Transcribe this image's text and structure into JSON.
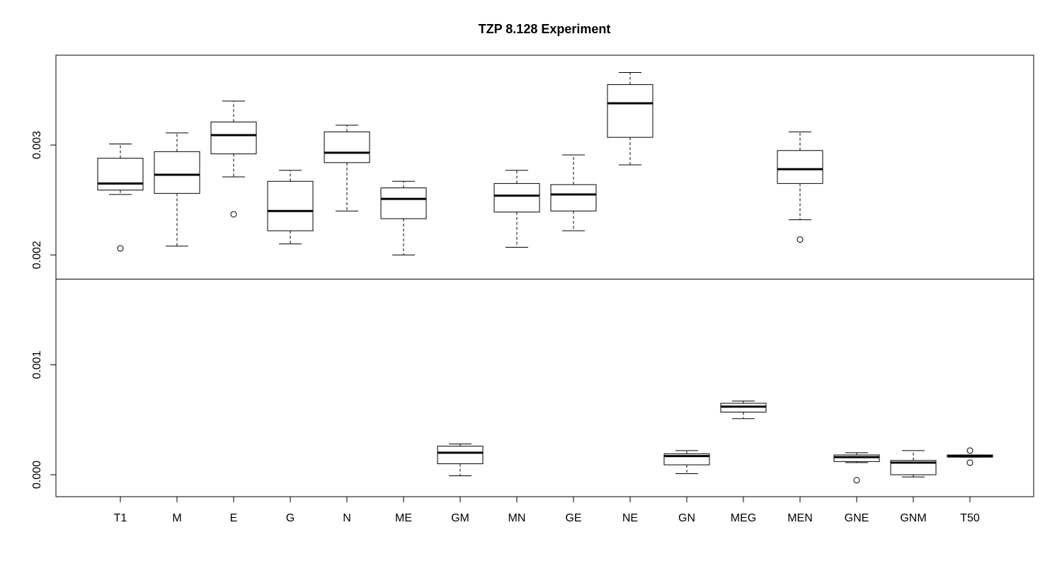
{
  "chart_data": {
    "type": "boxplot",
    "title": "TZP 8.128 Experiment",
    "xlabel": "",
    "ylabel": "",
    "ylim": [
      -0.0002,
      0.0038
    ],
    "yticks": [
      "0.000",
      "0.001",
      "0.002",
      "0.003"
    ],
    "ytick_values": [
      0,
      0.001,
      0.002,
      0.003
    ],
    "reference_line": 0.00178,
    "grid": false,
    "categories": [
      "T1",
      "M",
      "E",
      "G",
      "N",
      "ME",
      "GM",
      "MN",
      "GE",
      "NE",
      "GN",
      "MEG",
      "MEN",
      "GNE",
      "GNM",
      "T50"
    ],
    "boxes": [
      {
        "category": "T1",
        "min": 0.00255,
        "q1": 0.00259,
        "median": 0.00265,
        "q3": 0.00288,
        "max": 0.00301,
        "outliers": [
          0.00206
        ]
      },
      {
        "category": "M",
        "min": 0.00208,
        "q1": 0.00256,
        "median": 0.00273,
        "q3": 0.00294,
        "max": 0.00311,
        "outliers": []
      },
      {
        "category": "E",
        "min": 0.00271,
        "q1": 0.00292,
        "median": 0.00309,
        "q3": 0.00321,
        "max": 0.0034,
        "outliers": [
          0.00237
        ]
      },
      {
        "category": "G",
        "min": 0.0021,
        "q1": 0.00222,
        "median": 0.0024,
        "q3": 0.00267,
        "max": 0.00277,
        "outliers": []
      },
      {
        "category": "N",
        "min": 0.0024,
        "q1": 0.00284,
        "median": 0.00293,
        "q3": 0.00312,
        "max": 0.00318,
        "outliers": []
      },
      {
        "category": "ME",
        "min": 0.002,
        "q1": 0.00233,
        "median": 0.00251,
        "q3": 0.00261,
        "max": 0.00267,
        "outliers": []
      },
      {
        "category": "GM",
        "min": -1e-05,
        "q1": 0.0001,
        "median": 0.0002,
        "q3": 0.00026,
        "max": 0.00028,
        "outliers": []
      },
      {
        "category": "MN",
        "min": 0.00207,
        "q1": 0.00239,
        "median": 0.00254,
        "q3": 0.00265,
        "max": 0.00277,
        "outliers": []
      },
      {
        "category": "GE",
        "min": 0.00222,
        "q1": 0.0024,
        "median": 0.00255,
        "q3": 0.00264,
        "max": 0.00291,
        "outliers": []
      },
      {
        "category": "NE",
        "min": 0.00282,
        "q1": 0.00307,
        "median": 0.00338,
        "q3": 0.00355,
        "max": 0.00366,
        "outliers": []
      },
      {
        "category": "GN",
        "min": 1e-05,
        "q1": 9e-05,
        "median": 0.00017,
        "q3": 0.00019,
        "max": 0.00022,
        "outliers": []
      },
      {
        "category": "MEG",
        "min": 0.00051,
        "q1": 0.00057,
        "median": 0.00062,
        "q3": 0.00065,
        "max": 0.00067,
        "outliers": []
      },
      {
        "category": "MEN",
        "min": 0.00232,
        "q1": 0.00265,
        "median": 0.00278,
        "q3": 0.00295,
        "max": 0.00312,
        "outliers": [
          0.00214
        ]
      },
      {
        "category": "GNE",
        "min": 0.00011,
        "q1": 0.00012,
        "median": 0.00016,
        "q3": 0.00018,
        "max": 0.0002,
        "outliers": [
          -5e-05
        ]
      },
      {
        "category": "GNM",
        "min": -2e-05,
        "q1": 0.0,
        "median": 0.00011,
        "q3": 0.00013,
        "max": 0.00022,
        "outliers": []
      },
      {
        "category": "T50",
        "min": 0.00016,
        "q1": 0.00016,
        "median": 0.00017,
        "q3": 0.00018,
        "max": 0.00018,
        "outliers": [
          0.00022,
          0.00011
        ]
      }
    ]
  }
}
